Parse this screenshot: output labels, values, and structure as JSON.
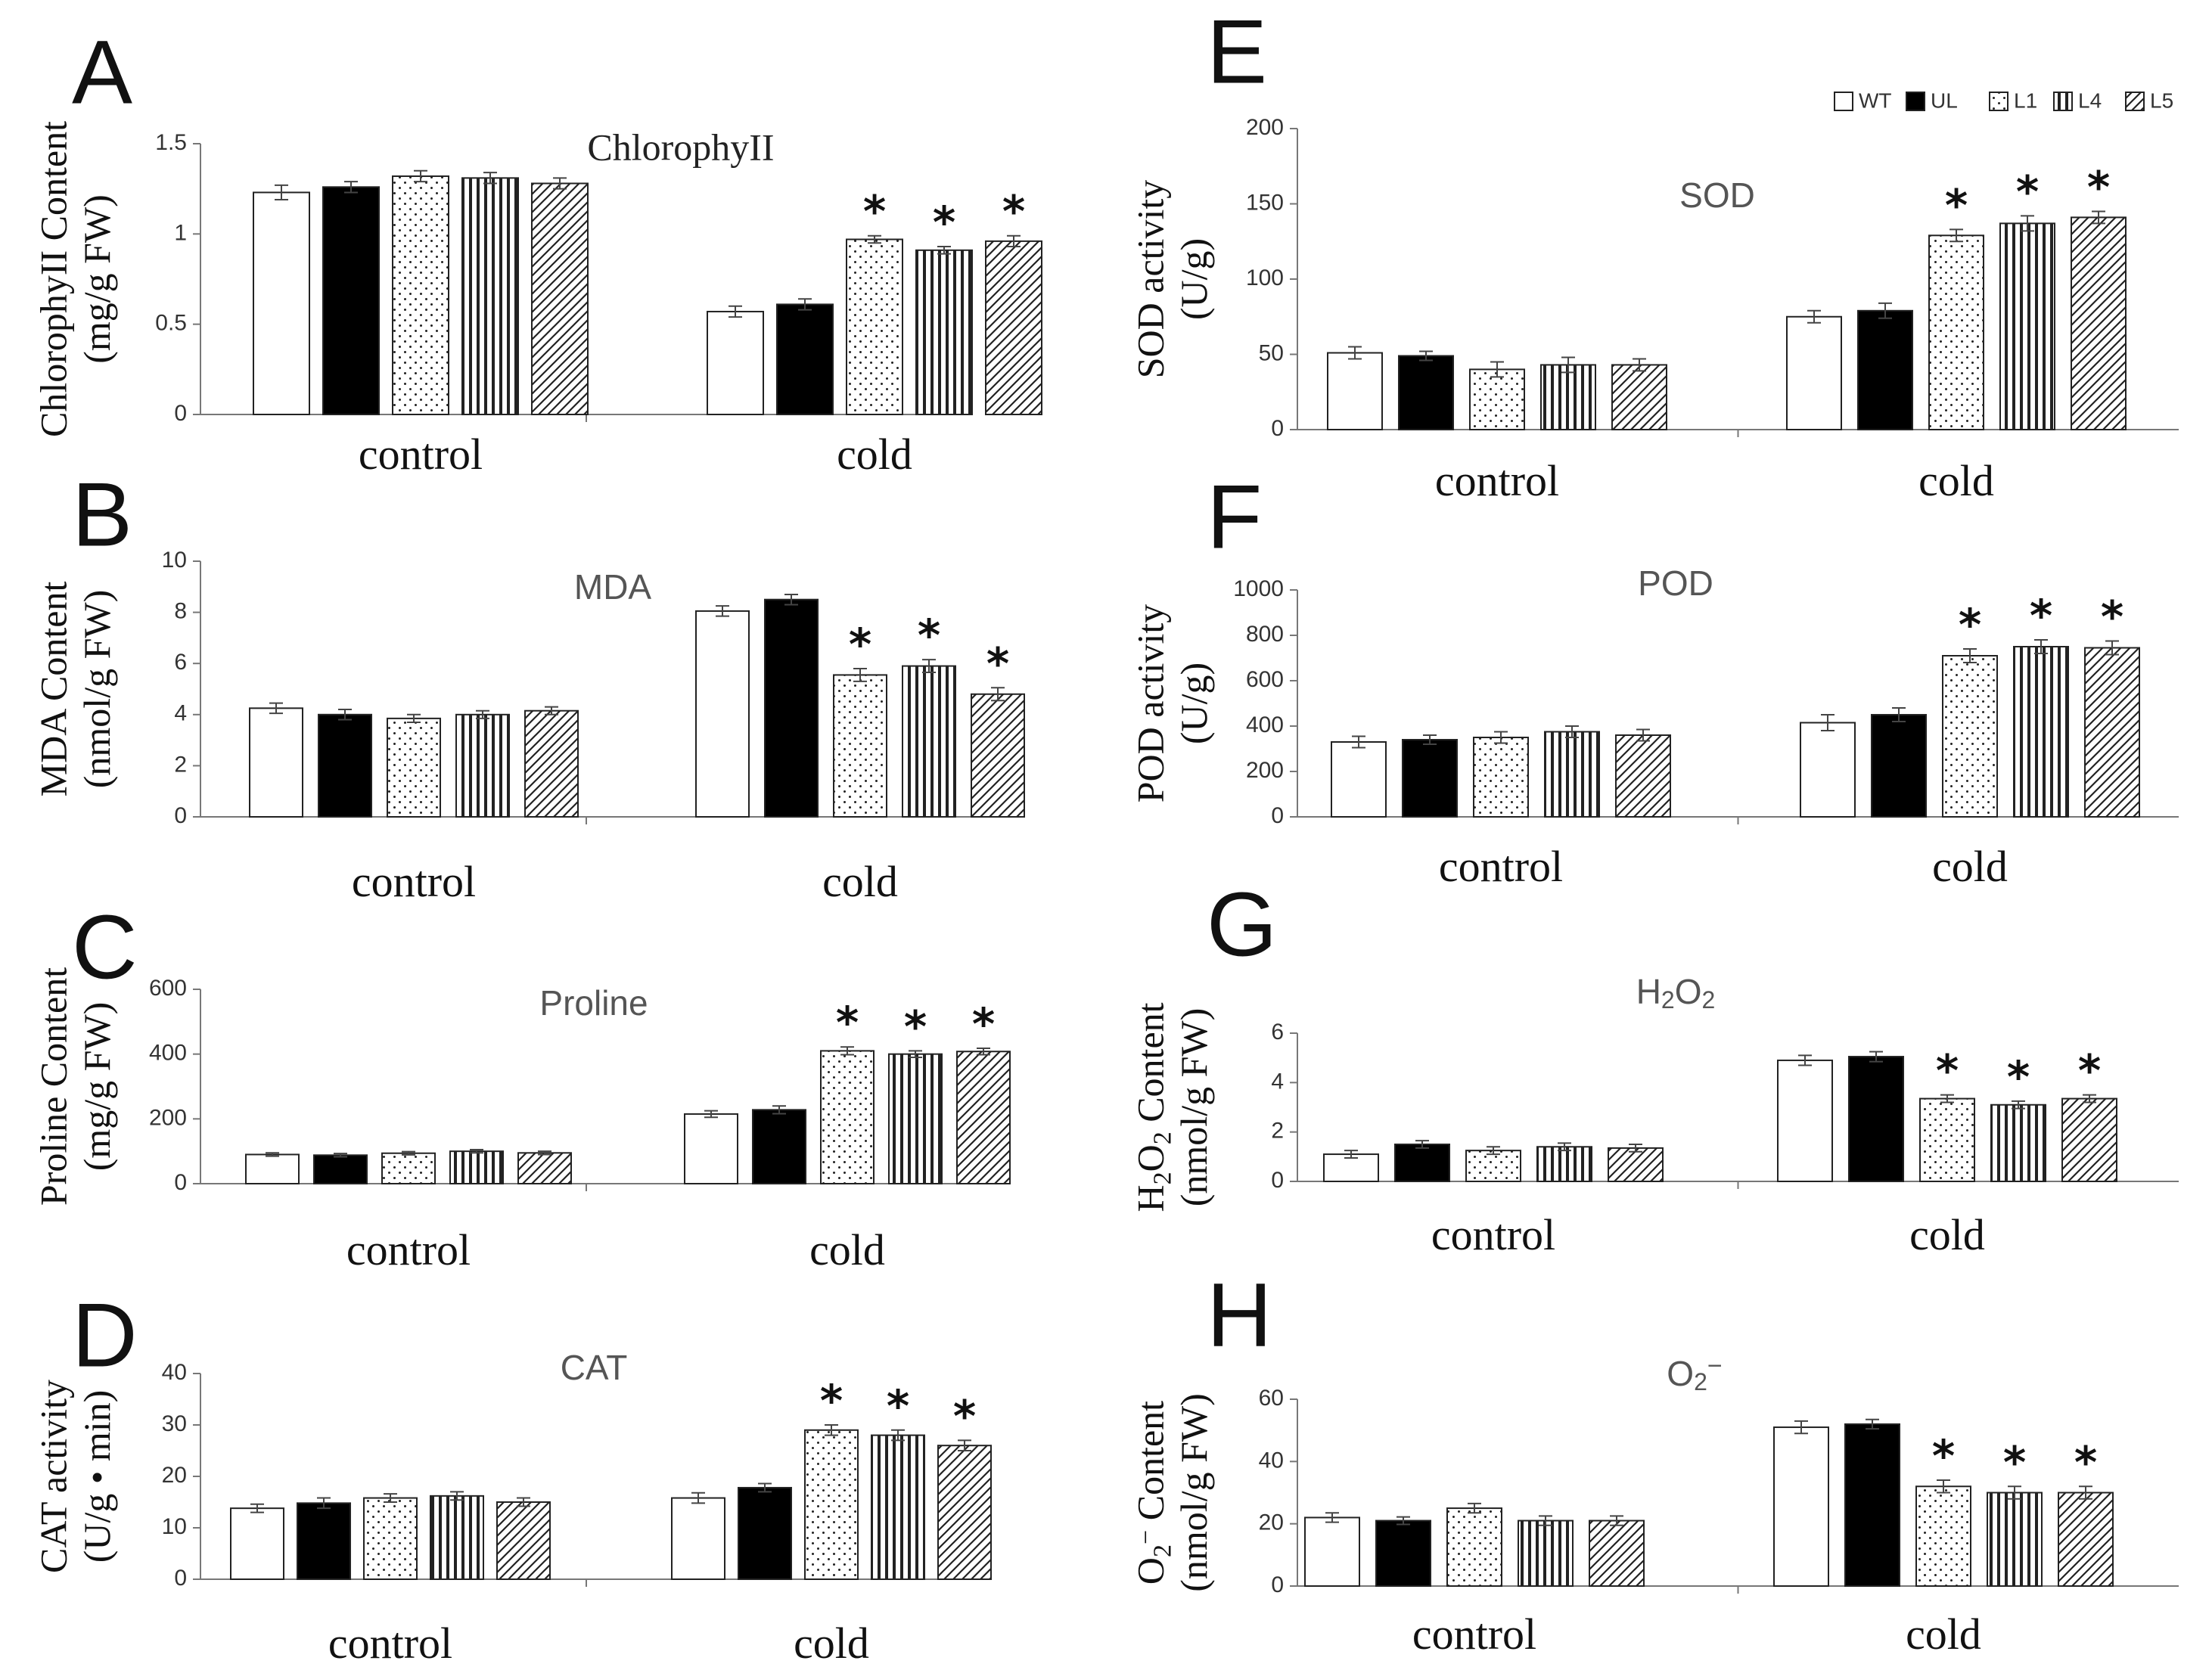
{
  "chart_data": [
    {
      "type": "bar",
      "panel": "A",
      "title": "ChlorophyII",
      "ylabel": [
        "ChlorophyII Content",
        "(mg/g FW)"
      ],
      "categories": [
        "control",
        "cold"
      ],
      "ylim": [
        0,
        1.5
      ],
      "yticks": [
        "0",
        "0.5",
        "1",
        "1.5"
      ],
      "series": [
        {
          "name": "WT",
          "values": [
            1.23,
            0.57
          ],
          "err": [
            0.04,
            0.03
          ]
        },
        {
          "name": "UL",
          "values": [
            1.26,
            0.61
          ],
          "err": [
            0.03,
            0.03
          ]
        },
        {
          "name": "L1",
          "values": [
            1.32,
            0.97
          ],
          "err": [
            0.03,
            0.02
          ]
        },
        {
          "name": "L4",
          "values": [
            1.31,
            0.91
          ],
          "err": [
            0.03,
            0.02
          ]
        },
        {
          "name": "L5",
          "values": [
            1.28,
            0.96
          ],
          "err": [
            0.03,
            0.03
          ]
        }
      ],
      "significant": [
        [
          false,
          false
        ],
        [
          false,
          false
        ],
        [
          false,
          true
        ],
        [
          false,
          true
        ],
        [
          false,
          true
        ]
      ]
    },
    {
      "type": "bar",
      "panel": "B",
      "title": "MDA",
      "ylabel": [
        "MDA Content",
        "(nmol/g FW)"
      ],
      "categories": [
        "control",
        "cold"
      ],
      "ylim": [
        0,
        10
      ],
      "yticks": [
        "0",
        "2",
        "4",
        "6",
        "8",
        "10"
      ],
      "series": [
        {
          "name": "WT",
          "values": [
            4.25,
            8.05
          ],
          "err": [
            0.2,
            0.2
          ]
        },
        {
          "name": "UL",
          "values": [
            4.0,
            8.5
          ],
          "err": [
            0.2,
            0.2
          ]
        },
        {
          "name": "L1",
          "values": [
            3.85,
            5.55
          ],
          "err": [
            0.15,
            0.25
          ]
        },
        {
          "name": "L4",
          "values": [
            4.0,
            5.9
          ],
          "err": [
            0.15,
            0.25
          ]
        },
        {
          "name": "L5",
          "values": [
            4.15,
            4.8
          ],
          "err": [
            0.15,
            0.25
          ]
        }
      ],
      "significant": [
        [
          false,
          false
        ],
        [
          false,
          false
        ],
        [
          false,
          true
        ],
        [
          false,
          true
        ],
        [
          false,
          true
        ]
      ]
    },
    {
      "type": "bar",
      "panel": "C",
      "title": "Proline",
      "ylabel": [
        "Proline Content",
        "(mg/g FW)"
      ],
      "categories": [
        "control",
        "cold"
      ],
      "ylim": [
        0,
        600
      ],
      "yticks": [
        "0",
        "200",
        "400",
        "600"
      ],
      "series": [
        {
          "name": "WT",
          "values": [
            90,
            215
          ],
          "err": [
            5,
            10
          ]
        },
        {
          "name": "UL",
          "values": [
            88,
            228
          ],
          "err": [
            5,
            12
          ]
        },
        {
          "name": "L1",
          "values": [
            94,
            410
          ],
          "err": [
            5,
            12
          ]
        },
        {
          "name": "L4",
          "values": [
            100,
            400
          ],
          "err": [
            5,
            10
          ]
        },
        {
          "name": "L5",
          "values": [
            95,
            408
          ],
          "err": [
            5,
            10
          ]
        }
      ],
      "significant": [
        [
          false,
          false
        ],
        [
          false,
          false
        ],
        [
          false,
          true
        ],
        [
          false,
          true
        ],
        [
          false,
          true
        ]
      ]
    },
    {
      "type": "bar",
      "panel": "D",
      "title": "CAT",
      "ylabel": [
        "CAT activity",
        "(U/g • min)"
      ],
      "categories": [
        "control",
        "cold"
      ],
      "ylim": [
        0,
        40
      ],
      "yticks": [
        "0",
        "10",
        "20",
        "30",
        "40"
      ],
      "series": [
        {
          "name": "WT",
          "values": [
            13.8,
            15.8
          ],
          "err": [
            0.8,
            1
          ]
        },
        {
          "name": "UL",
          "values": [
            14.8,
            17.8
          ],
          "err": [
            1,
            0.8
          ]
        },
        {
          "name": "L1",
          "values": [
            15.8,
            29
          ],
          "err": [
            0.8,
            1
          ]
        },
        {
          "name": "L4",
          "values": [
            16.2,
            28
          ],
          "err": [
            0.8,
            1
          ]
        },
        {
          "name": "L5",
          "values": [
            15,
            26
          ],
          "err": [
            0.8,
            1
          ]
        }
      ],
      "significant": [
        [
          false,
          false
        ],
        [
          false,
          false
        ],
        [
          false,
          true
        ],
        [
          false,
          true
        ],
        [
          false,
          true
        ]
      ]
    },
    {
      "type": "bar",
      "panel": "E",
      "title": "SOD",
      "ylabel": [
        "SOD activity",
        "(U/g)"
      ],
      "categories": [
        "control",
        "cold"
      ],
      "ylim": [
        0,
        200
      ],
      "yticks": [
        "0",
        "50",
        "100",
        "150",
        "200"
      ],
      "series": [
        {
          "name": "WT",
          "values": [
            51,
            75
          ],
          "err": [
            4,
            4
          ]
        },
        {
          "name": "UL",
          "values": [
            49,
            79
          ],
          "err": [
            3,
            5
          ]
        },
        {
          "name": "L1",
          "values": [
            40,
            129
          ],
          "err": [
            5,
            4
          ]
        },
        {
          "name": "L4",
          "values": [
            43,
            137
          ],
          "err": [
            5,
            5
          ]
        },
        {
          "name": "L5",
          "values": [
            43,
            141
          ],
          "err": [
            4,
            4
          ]
        }
      ],
      "significant": [
        [
          false,
          false
        ],
        [
          false,
          false
        ],
        [
          false,
          true
        ],
        [
          false,
          true
        ],
        [
          false,
          true
        ]
      ]
    },
    {
      "type": "bar",
      "panel": "F",
      "title": "POD",
      "ylabel": [
        "POD activity",
        "(U/g)"
      ],
      "categories": [
        "control",
        "cold"
      ],
      "ylim": [
        0,
        1000
      ],
      "yticks": [
        "0",
        "200",
        "400",
        "600",
        "800",
        "1000"
      ],
      "series": [
        {
          "name": "WT",
          "values": [
            330,
            415
          ],
          "err": [
            25,
            35
          ]
        },
        {
          "name": "UL",
          "values": [
            340,
            450
          ],
          "err": [
            20,
            30
          ]
        },
        {
          "name": "L1",
          "values": [
            350,
            710
          ],
          "err": [
            25,
            30
          ]
        },
        {
          "name": "L4",
          "values": [
            375,
            750
          ],
          "err": [
            25,
            30
          ]
        },
        {
          "name": "L5",
          "values": [
            360,
            745
          ],
          "err": [
            25,
            30
          ]
        }
      ],
      "significant": [
        [
          false,
          false
        ],
        [
          false,
          false
        ],
        [
          false,
          true
        ],
        [
          false,
          true
        ],
        [
          false,
          true
        ]
      ]
    },
    {
      "type": "bar",
      "panel": "G",
      "title": "H2O2",
      "ylabel": [
        "H2O2 Content",
        "(nmol/g FW)"
      ],
      "categories": [
        "control",
        "cold"
      ],
      "ylim": [
        0,
        6
      ],
      "yticks": [
        "0",
        "2",
        "4",
        "6"
      ],
      "series": [
        {
          "name": "WT",
          "values": [
            1.1,
            4.9
          ],
          "err": [
            0.15,
            0.2
          ]
        },
        {
          "name": "UL",
          "values": [
            1.5,
            5.05
          ],
          "err": [
            0.15,
            0.2
          ]
        },
        {
          "name": "L1",
          "values": [
            1.25,
            3.35
          ],
          "err": [
            0.15,
            0.15
          ]
        },
        {
          "name": "L4",
          "values": [
            1.4,
            3.1
          ],
          "err": [
            0.15,
            0.15
          ]
        },
        {
          "name": "L5",
          "values": [
            1.35,
            3.35
          ],
          "err": [
            0.15,
            0.15
          ]
        }
      ],
      "significant": [
        [
          false,
          false
        ],
        [
          false,
          false
        ],
        [
          false,
          true
        ],
        [
          false,
          true
        ],
        [
          false,
          true
        ]
      ]
    },
    {
      "type": "bar",
      "panel": "H",
      "title": "O2⁻",
      "ylabel": [
        "O2⁻ Content",
        "(nmol/g FW)"
      ],
      "categories": [
        "control",
        "cold"
      ],
      "ylim": [
        0,
        60
      ],
      "yticks": [
        "0",
        "20",
        "40",
        "60"
      ],
      "series": [
        {
          "name": "WT",
          "values": [
            22,
            51
          ],
          "err": [
            1.5,
            2
          ]
        },
        {
          "name": "UL",
          "values": [
            21,
            52
          ],
          "err": [
            1.2,
            1.5
          ]
        },
        {
          "name": "L1",
          "values": [
            25,
            32
          ],
          "err": [
            1.5,
            2
          ]
        },
        {
          "name": "L4",
          "values": [
            21,
            30
          ],
          "err": [
            1.5,
            2
          ]
        },
        {
          "name": "L5",
          "values": [
            21,
            30
          ],
          "err": [
            1.5,
            2
          ]
        }
      ],
      "significant": [
        [
          false,
          false
        ],
        [
          false,
          false
        ],
        [
          false,
          true
        ],
        [
          false,
          true
        ],
        [
          false,
          true
        ]
      ]
    }
  ],
  "legend": {
    "items": [
      "WT",
      "UL",
      "L1",
      "L4",
      "L5"
    ],
    "placement": "top-right"
  },
  "significance_marker": "*"
}
